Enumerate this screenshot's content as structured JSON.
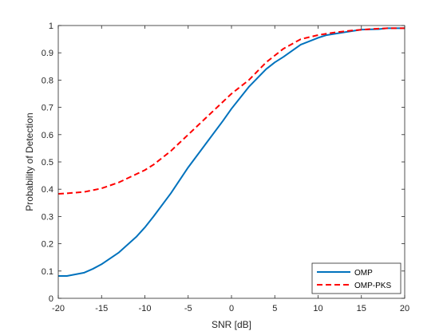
{
  "chart_data": {
    "type": "line",
    "title": "",
    "xlabel": "SNR [dB]",
    "ylabel": "Probability of Detection",
    "xlim": [
      -20,
      20
    ],
    "ylim": [
      0,
      1
    ],
    "x_ticks": [
      -20,
      -15,
      -10,
      -5,
      0,
      5,
      10,
      15,
      20
    ],
    "y_ticks": [
      0,
      0.1,
      0.2,
      0.3,
      0.4,
      0.5,
      0.6,
      0.7,
      0.8,
      0.9,
      1
    ],
    "grid": false,
    "legend_position": "bottom-right",
    "series": [
      {
        "name": "OMP",
        "color": "#0072BD",
        "line_style": "solid",
        "x": [
          -20,
          -19,
          -17,
          -16,
          -15,
          -13,
          -11,
          -10,
          -9,
          -7,
          -5,
          -3,
          -1,
          0,
          2,
          4,
          5,
          6,
          8,
          10,
          11,
          13,
          15,
          17,
          18,
          20
        ],
        "y": [
          0.082,
          0.082,
          0.094,
          0.108,
          0.125,
          0.168,
          0.225,
          0.26,
          0.3,
          0.385,
          0.48,
          0.565,
          0.65,
          0.695,
          0.775,
          0.84,
          0.865,
          0.885,
          0.93,
          0.955,
          0.965,
          0.975,
          0.985,
          0.987,
          0.99,
          0.99
        ]
      },
      {
        "name": "OMP-PKS",
        "color": "#FF0000",
        "line_style": "dashed",
        "x": [
          -20,
          -19,
          -17,
          -15,
          -13,
          -11,
          -10,
          -9,
          -7,
          -5,
          -3,
          -1,
          0,
          2,
          4,
          6,
          8,
          10,
          12,
          14,
          16,
          18,
          20
        ],
        "y": [
          0.383,
          0.385,
          0.39,
          0.403,
          0.425,
          0.455,
          0.47,
          0.49,
          0.54,
          0.6,
          0.66,
          0.72,
          0.75,
          0.8,
          0.865,
          0.915,
          0.95,
          0.965,
          0.975,
          0.982,
          0.987,
          0.99,
          0.99
        ]
      }
    ]
  }
}
